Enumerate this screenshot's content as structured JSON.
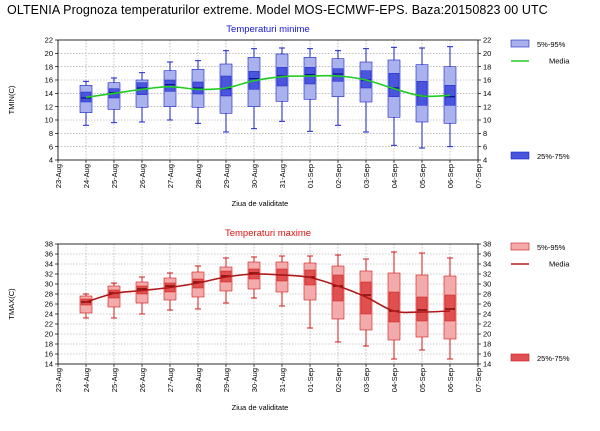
{
  "page": {
    "title": "OLTENIA  Prognoza temperaturilor extreme.  Model MOS-ECMWF-EPS. Baza:20150823 00 UTC"
  },
  "colors": {
    "tmin_box_light": "#aab2ee",
    "tmin_box_dark": "#4a55dd",
    "tmin_whisker": "#1a22c8",
    "tmin_median": "#0a1090",
    "tmin_mean_line": "#22cc22",
    "tmin_title": "#1515d8",
    "tmax_box_light": "#f2aaaa",
    "tmax_box_dark": "#e05050",
    "tmax_whisker": "#d01818",
    "tmax_median": "#700000",
    "tmax_mean_line": "#b01818",
    "tmax_title": "#e01010",
    "grid": "#999999"
  },
  "chart_data": [
    {
      "type": "box",
      "title": "Temperaturi minime",
      "xlabel": "Ziua de validitate",
      "ylabel": "TMIN(C)",
      "ylim": [
        4,
        22
      ],
      "yticks": [
        4,
        6,
        8,
        10,
        12,
        14,
        16,
        18,
        20,
        22
      ],
      "grid": true,
      "legend_position": "right",
      "legend": {
        "range_outer": "5%-95%",
        "mean": "Media",
        "range_inner": "25%-75%"
      },
      "categories": [
        "23-Aug",
        "24-Aug",
        "25-Aug",
        "26-Aug",
        "27-Aug",
        "28-Aug",
        "29-Aug",
        "30-Aug",
        "31-Aug",
        "01-Sep",
        "02-Sep",
        "03-Sep",
        "04-Sep",
        "05-Sep",
        "06-Sep",
        "07-Sep"
      ],
      "boxes": [
        {
          "x": "24-Aug",
          "p5": 9.2,
          "p95": 15.8,
          "p10": 11.1,
          "p90": 15.2,
          "q1": 12.7,
          "q3": 14.2,
          "median": 13.3,
          "mean": 13.4
        },
        {
          "x": "25-Aug",
          "p5": 9.6,
          "p95": 16.3,
          "p10": 11.6,
          "p90": 15.6,
          "q1": 13.3,
          "q3": 14.7,
          "median": 14.1,
          "mean": 14.0
        },
        {
          "x": "26-Aug",
          "p5": 9.7,
          "p95": 17.1,
          "p10": 11.9,
          "p90": 16.0,
          "q1": 13.8,
          "q3": 15.6,
          "median": 14.8,
          "mean": 14.6
        },
        {
          "x": "27-Aug",
          "p5": 10.0,
          "p95": 18.7,
          "p10": 12.0,
          "p90": 17.4,
          "q1": 14.3,
          "q3": 16.0,
          "median": 15.3,
          "mean": 15.0
        },
        {
          "x": "28-Aug",
          "p5": 9.5,
          "p95": 18.9,
          "p10": 11.9,
          "p90": 17.6,
          "q1": 13.9,
          "q3": 15.7,
          "median": 14.8,
          "mean": 14.6
        },
        {
          "x": "29-Aug",
          "p5": 8.2,
          "p95": 20.4,
          "p10": 11.0,
          "p90": 18.4,
          "q1": 13.6,
          "q3": 16.6,
          "median": 14.7,
          "mean": 14.8
        },
        {
          "x": "30-Aug",
          "p5": 8.7,
          "p95": 20.7,
          "p10": 12.0,
          "p90": 19.4,
          "q1": 14.6,
          "q3": 17.3,
          "median": 16.2,
          "mean": 15.9
        },
        {
          "x": "31-Aug",
          "p5": 9.8,
          "p95": 20.8,
          "p10": 12.8,
          "p90": 19.9,
          "q1": 15.1,
          "q3": 17.9,
          "median": 16.6,
          "mean": 16.5
        },
        {
          "x": "01-Sep",
          "p5": 8.3,
          "p95": 20.7,
          "p10": 13.1,
          "p90": 19.4,
          "q1": 15.4,
          "q3": 17.9,
          "median": 16.8,
          "mean": 16.6
        },
        {
          "x": "02-Sep",
          "p5": 9.2,
          "p95": 20.4,
          "p10": 13.5,
          "p90": 19.2,
          "q1": 15.8,
          "q3": 17.7,
          "median": 16.9,
          "mean": 16.6
        },
        {
          "x": "03-Sep",
          "p5": 8.2,
          "p95": 20.7,
          "p10": 12.7,
          "p90": 18.7,
          "q1": 14.8,
          "q3": 17.4,
          "median": 16.0,
          "mean": 16.0
        },
        {
          "x": "04-Sep",
          "p5": 6.2,
          "p95": 20.9,
          "p10": 10.4,
          "p90": 19.0,
          "q1": 13.5,
          "q3": 17.0,
          "median": 14.8,
          "mean": 14.7
        },
        {
          "x": "05-Sep",
          "p5": 5.8,
          "p95": 20.8,
          "p10": 9.7,
          "p90": 18.3,
          "q1": 12.2,
          "q3": 15.8,
          "median": 13.6,
          "mean": 13.6
        },
        {
          "x": "06-Sep",
          "p5": 6.0,
          "p95": 21.0,
          "p10": 9.5,
          "p90": 18.0,
          "q1": 12.2,
          "q3": 15.2,
          "median": 13.5,
          "mean": 13.7
        }
      ]
    },
    {
      "type": "box",
      "title": "Temperaturi maxime",
      "xlabel": "Ziua de validitate",
      "ylabel": "TMAX(C)",
      "ylim": [
        14,
        38
      ],
      "yticks": [
        14,
        16,
        18,
        20,
        22,
        24,
        26,
        28,
        30,
        32,
        34,
        36,
        38
      ],
      "grid": true,
      "legend_position": "right",
      "legend": {
        "range_outer": "5%-95%",
        "mean": "Media",
        "range_inner": "25%-75%"
      },
      "categories": [
        "23-Aug",
        "24-Aug",
        "25-Aug",
        "26-Aug",
        "27-Aug",
        "28-Aug",
        "29-Aug",
        "30-Aug",
        "31-Aug",
        "01-Sep",
        "02-Sep",
        "03-Sep",
        "04-Sep",
        "05-Sep",
        "06-Sep",
        "07-Sep"
      ],
      "boxes": [
        {
          "x": "24-Aug",
          "p5": 23.2,
          "p95": 28.0,
          "p10": 24.2,
          "p90": 27.6,
          "q1": 25.8,
          "q3": 27.0,
          "median": 26.4,
          "mean": 26.4
        },
        {
          "x": "25-Aug",
          "p5": 23.2,
          "p95": 30.2,
          "p10": 25.4,
          "p90": 29.6,
          "q1": 27.2,
          "q3": 28.8,
          "median": 28.2,
          "mean": 28.1
        },
        {
          "x": "26-Aug",
          "p5": 24.0,
          "p95": 31.4,
          "p10": 26.2,
          "p90": 30.4,
          "q1": 28.0,
          "q3": 29.6,
          "median": 29.0,
          "mean": 28.7
        },
        {
          "x": "27-Aug",
          "p5": 24.8,
          "p95": 32.2,
          "p10": 26.8,
          "p90": 31.2,
          "q1": 28.4,
          "q3": 30.2,
          "median": 29.6,
          "mean": 29.3
        },
        {
          "x": "28-Aug",
          "p5": 25.0,
          "p95": 33.6,
          "p10": 27.4,
          "p90": 32.4,
          "q1": 29.2,
          "q3": 31.0,
          "median": 30.4,
          "mean": 30.2
        },
        {
          "x": "29-Aug",
          "p5": 26.2,
          "p95": 35.2,
          "p10": 28.6,
          "p90": 33.4,
          "q1": 30.4,
          "q3": 32.6,
          "median": 31.6,
          "mean": 31.4
        },
        {
          "x": "30-Aug",
          "p5": 27.2,
          "p95": 35.4,
          "p10": 29.0,
          "p90": 34.4,
          "q1": 31.0,
          "q3": 33.0,
          "median": 32.2,
          "mean": 32.0
        },
        {
          "x": "31-Aug",
          "p5": 25.6,
          "p95": 35.6,
          "p10": 28.4,
          "p90": 34.4,
          "q1": 30.6,
          "q3": 33.0,
          "median": 31.8,
          "mean": 31.8
        },
        {
          "x": "01-Sep",
          "p5": 21.2,
          "p95": 35.6,
          "p10": 26.8,
          "p90": 34.2,
          "q1": 29.8,
          "q3": 32.8,
          "median": 31.4,
          "mean": 31.3
        },
        {
          "x": "02-Sep",
          "p5": 18.4,
          "p95": 35.8,
          "p10": 23.0,
          "p90": 33.6,
          "q1": 26.6,
          "q3": 31.8,
          "median": 29.6,
          "mean": 29.6
        },
        {
          "x": "03-Sep",
          "p5": 17.6,
          "p95": 35.0,
          "p10": 20.8,
          "p90": 32.6,
          "q1": 24.0,
          "q3": 30.4,
          "median": 27.8,
          "mean": 27.4
        },
        {
          "x": "04-Sep",
          "p5": 15.0,
          "p95": 36.4,
          "p10": 18.8,
          "p90": 32.2,
          "q1": 22.4,
          "q3": 28.4,
          "median": 24.6,
          "mean": 24.6
        },
        {
          "x": "05-Sep",
          "p5": 16.8,
          "p95": 36.2,
          "p10": 19.4,
          "p90": 31.8,
          "q1": 22.6,
          "q3": 27.4,
          "median": 24.8,
          "mean": 24.4
        },
        {
          "x": "06-Sep",
          "p5": 15.0,
          "p95": 35.2,
          "p10": 19.0,
          "p90": 31.6,
          "q1": 22.6,
          "q3": 27.8,
          "median": 25.0,
          "mean": 24.6
        }
      ]
    }
  ]
}
